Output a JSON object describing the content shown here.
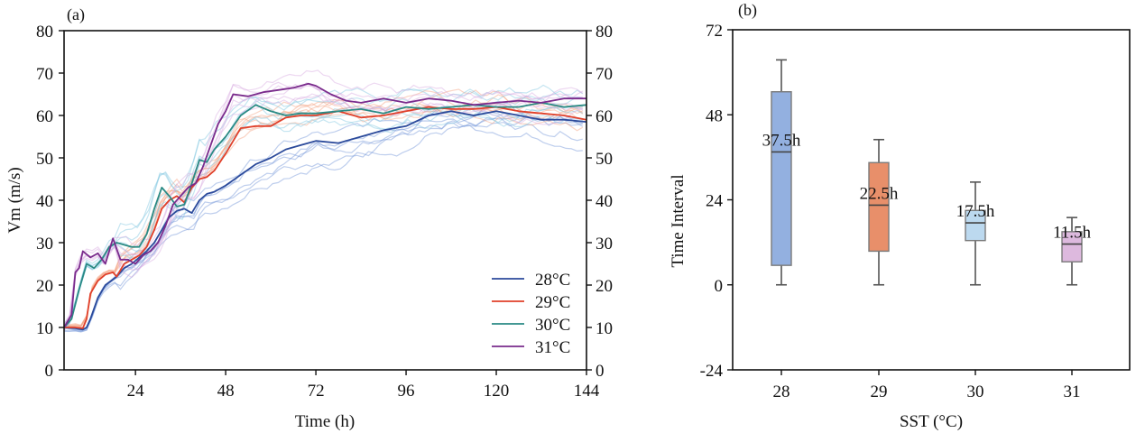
{
  "chart_data": [
    {
      "type": "line",
      "panel_label": "(a)",
      "xlabel": "Time (h)",
      "ylabel": "Vm (m/s)",
      "xlim": [
        5,
        144
      ],
      "ylim": [
        0,
        80
      ],
      "x_ticks": [
        24,
        48,
        72,
        96,
        120,
        144
      ],
      "x_tick_labels": [
        "24",
        "48",
        "72",
        "96",
        "120",
        "144"
      ],
      "y_ticks": [
        0,
        10,
        20,
        30,
        40,
        50,
        60,
        70,
        80
      ],
      "y_tick_labels": [
        "0",
        "10",
        "20",
        "30",
        "40",
        "50",
        "60",
        "70",
        "80"
      ],
      "right_y_tick_labels": [
        "0",
        "10",
        "20",
        "30",
        "40",
        "50",
        "60",
        "70",
        "80"
      ],
      "grid": false,
      "legend_position": "bottom-right",
      "series": [
        {
          "name": "28°C",
          "color": "#2b4a9b",
          "ensemble_color": "#6f93d8",
          "x": [
            5,
            8,
            10,
            11,
            12,
            14,
            16,
            19,
            21,
            23,
            25,
            27,
            29,
            31,
            33,
            35,
            37,
            39,
            41,
            43,
            45,
            48,
            52,
            56,
            60,
            64,
            68,
            72,
            78,
            84,
            90,
            96,
            102,
            108,
            114,
            120,
            126,
            132,
            138,
            144
          ],
          "y": [
            10,
            9.8,
            9.5,
            10,
            12,
            17,
            20,
            22,
            24,
            25,
            26.5,
            28,
            30,
            33,
            36,
            37.5,
            38,
            37,
            40,
            41.5,
            42,
            43.5,
            46,
            48.5,
            50,
            52,
            53,
            54,
            53.5,
            55,
            56.5,
            57.5,
            60,
            61,
            60,
            61,
            60,
            59,
            59,
            58.5
          ]
        },
        {
          "name": "29°C",
          "color": "#e0402a",
          "ensemble_color": "#f4a07e",
          "x": [
            5,
            8,
            10,
            11,
            12,
            14,
            16,
            18,
            19,
            21,
            23,
            25,
            27,
            29,
            31,
            33,
            35,
            37,
            39,
            41,
            43,
            45,
            48,
            52,
            56,
            60,
            64,
            68,
            72,
            78,
            84,
            90,
            96,
            102,
            108,
            114,
            120,
            126,
            132,
            138,
            144
          ],
          "y": [
            10,
            10,
            9.8,
            12,
            18,
            21,
            22.5,
            23,
            22,
            25,
            26,
            27,
            29,
            33,
            38,
            40,
            41,
            39.5,
            43,
            45,
            45.5,
            47,
            51,
            57,
            57.5,
            57.5,
            59.5,
            60,
            60,
            61,
            59.5,
            60,
            61,
            62,
            61.5,
            61.5,
            62,
            61,
            60.5,
            60,
            59
          ]
        },
        {
          "name": "30°C",
          "color": "#2a8a84",
          "ensemble_color": "#7fc6e0",
          "x": [
            5,
            7,
            9,
            11,
            13,
            15,
            17,
            19,
            21,
            23,
            25,
            27,
            29,
            31,
            33,
            35,
            37,
            39,
            41,
            43,
            45,
            48,
            52,
            56,
            60,
            64,
            68,
            72,
            78,
            84,
            90,
            96,
            102,
            108,
            114,
            120,
            126,
            132,
            138,
            144
          ],
          "y": [
            10,
            12,
            19,
            25,
            24,
            26,
            29,
            30,
            29.5,
            29,
            29,
            32,
            38,
            43,
            41,
            38.5,
            39,
            44,
            49.5,
            49,
            52,
            55,
            60,
            62.5,
            61,
            60,
            60.5,
            60.5,
            61,
            61.5,
            60.5,
            62,
            61.5,
            62,
            62.5,
            62,
            62,
            63,
            62,
            62.5
          ]
        },
        {
          "name": "31°C",
          "color": "#7a2b8c",
          "ensemble_color": "#d7a8e0",
          "x": [
            5,
            7,
            8,
            9,
            10,
            12,
            14,
            16,
            18,
            20,
            22,
            24,
            26,
            28,
            30,
            32,
            34,
            36,
            38,
            40,
            42,
            44,
            46,
            48,
            50,
            54,
            58,
            62,
            66,
            70,
            72,
            76,
            80,
            84,
            90,
            96,
            102,
            108,
            114,
            120,
            126,
            132,
            138,
            144
          ],
          "y": [
            10,
            13,
            23,
            24,
            28,
            26.5,
            27.5,
            25,
            31,
            26,
            26,
            25,
            27,
            28,
            30,
            34,
            39,
            41,
            43,
            44,
            48,
            53,
            58,
            61,
            65,
            64.5,
            65.5,
            66,
            66.5,
            67.5,
            67,
            65,
            63.5,
            63,
            64,
            63,
            64,
            63.5,
            62.5,
            63,
            63.5,
            63,
            64,
            64
          ]
        }
      ]
    },
    {
      "type": "box",
      "panel_label": "(b)",
      "xlabel": "SST (°C)",
      "ylabel": "Time Interval",
      "ylim": [
        -24,
        72
      ],
      "y_ticks": [
        -24,
        0,
        24,
        48,
        72
      ],
      "y_tick_labels": [
        "-24",
        "0",
        "24",
        "48",
        "72"
      ],
      "categories": [
        "28",
        "29",
        "30",
        "31"
      ],
      "grid": false,
      "boxes": [
        {
          "category": "28",
          "whisker_low": 0,
          "q1": 5.5,
          "median": 37.5,
          "q3": 54.5,
          "whisker_high": 63.5,
          "label": "37.5h",
          "color": "#93b0e0"
        },
        {
          "category": "29",
          "whisker_low": 0,
          "q1": 9.5,
          "median": 22.5,
          "q3": 34.5,
          "whisker_high": 41,
          "label": "22.5h",
          "color": "#e88f6a"
        },
        {
          "category": "30",
          "whisker_low": 0,
          "q1": 12.5,
          "median": 17.5,
          "q3": 21,
          "whisker_high": 29,
          "label": "17.5h",
          "color": "#bcd9ef"
        },
        {
          "category": "31",
          "whisker_low": 0,
          "q1": 6.5,
          "median": 11.5,
          "q3": 15,
          "whisker_high": 19,
          "label": "11.5h",
          "color": "#ddb9de"
        }
      ]
    }
  ]
}
